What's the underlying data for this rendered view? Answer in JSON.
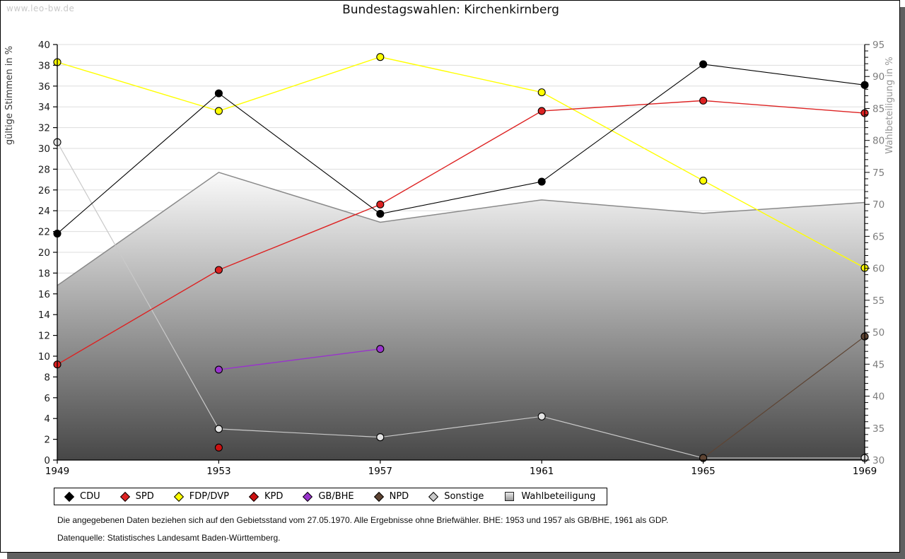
{
  "page": {
    "watermark": "www.leo-bw.de",
    "title": "Bundestagswahlen: Kirchenkirnberg",
    "footnote1": "Die angegebenen Daten beziehen sich auf den Gebietsstand vom 27.05.1970. Alle Ergebnisse ohne Briefwähler. BHE: 1953 und 1957 als GB/BHE, 1961 als GDP.",
    "footnote2": "Datenquelle: Statistisches Landesamt Baden-Württemberg."
  },
  "chart_data": {
    "type": "line",
    "title": "Bundestagswahlen: Kirchenkirnberg",
    "x": [
      "1949",
      "1953",
      "1957",
      "1961",
      "1965",
      "1969"
    ],
    "left_axis": {
      "label": "gültige Stimmen in %",
      "min": 0,
      "max": 40,
      "tick_step": 2,
      "grid": true
    },
    "right_axis": {
      "label": "Wahlbeteiligung in %",
      "min": 30,
      "max": 95,
      "tick_step": 1,
      "label_step": 5
    },
    "series": [
      {
        "name": "CDU",
        "axis": "left",
        "color": "#000000",
        "line_width": 1.1,
        "values": [
          21.8,
          35.3,
          23.7,
          26.8,
          38.1,
          36.1
        ]
      },
      {
        "name": "SPD",
        "axis": "left",
        "color": "#dd2222",
        "line_width": 1.4,
        "values": [
          9.2,
          18.3,
          24.6,
          33.6,
          34.6,
          33.4
        ]
      },
      {
        "name": "FDP/DVP",
        "axis": "left",
        "color": "#ffff00",
        "line_width": 1.4,
        "values": [
          38.3,
          33.6,
          38.8,
          35.4,
          26.9,
          18.5
        ]
      },
      {
        "name": "KPD",
        "axis": "left",
        "color": "#cc1111",
        "line_width": 1.2,
        "values": [
          null,
          1.2,
          null,
          null,
          null,
          null
        ]
      },
      {
        "name": "GB/BHE",
        "axis": "left",
        "color": "#9933cc",
        "line_width": 1.4,
        "values": [
          null,
          8.7,
          10.7,
          null,
          null,
          null
        ]
      },
      {
        "name": "NPD",
        "axis": "left",
        "color": "#5e4433",
        "line_width": 1.2,
        "values": [
          null,
          null,
          null,
          null,
          0.2,
          11.9
        ]
      },
      {
        "name": "Sonstige",
        "axis": "left",
        "color": "#c9c9c9",
        "marker_fill": "#e3e3e3",
        "line_width": 1.2,
        "values": [
          30.6,
          3.0,
          2.2,
          4.2,
          0.2,
          0.2
        ]
      }
    ],
    "area_series": {
      "name": "Wahlbeteiligung",
      "axis": "right",
      "stroke": "#8a8a8a",
      "fill_top": "#fbfbfb",
      "fill_bottom": "#474747",
      "values": [
        57.3,
        75.0,
        67.2,
        70.7,
        68.6,
        70.3
      ]
    },
    "legend_position": "bottom",
    "colors": {
      "grid": "#dddddd",
      "axis": "#000000",
      "left_tick_text": "#1c1c1c",
      "right_tick_text": "#7d7d7d",
      "left_axis_title": "#3a3a3a",
      "right_axis_title": "#979797"
    }
  }
}
